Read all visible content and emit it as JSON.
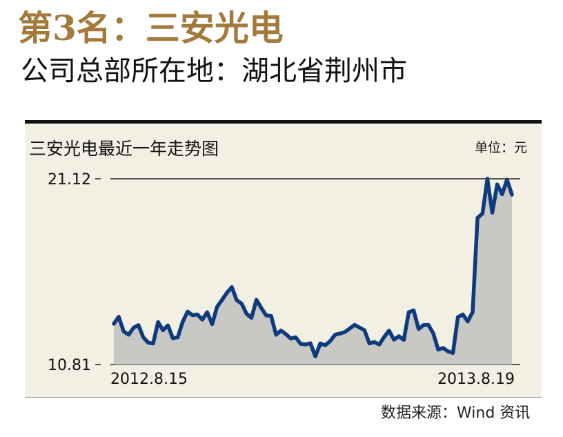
{
  "header": {
    "headline": "第3名：三安光电",
    "subheadline": "公司总部所在地：湖北省荆州市"
  },
  "chart_data": {
    "type": "area",
    "title": "三安光电最近一年走势图",
    "unit": "单位：元",
    "source": "数据来源：Wind 资讯",
    "ylim": [
      10.81,
      21.12
    ],
    "y_ticks": [
      "21.12",
      "10.81"
    ],
    "x_tick_labels": [
      "2012.8.15",
      "2013.8.19"
    ],
    "x_range": [
      "2012-08-15",
      "2013-08-19"
    ],
    "grid": true,
    "colors": {
      "line": "#0e3a7e",
      "area": "#c8c8c4",
      "background": "#f2efe3",
      "headline": "#a37a3c"
    },
    "series": [
      {
        "values": [
          13.07,
          13.46,
          12.65,
          12.46,
          12.85,
          13.0,
          12.32,
          12.02,
          11.98,
          13.17,
          12.71,
          12.98,
          12.27,
          12.32,
          13.17,
          13.75,
          13.55,
          13.59,
          13.3,
          13.71,
          13.05,
          14.01,
          14.39,
          14.79,
          15.11,
          14.38,
          14.19,
          13.63,
          13.4,
          14.4,
          13.95,
          13.53,
          13.51,
          12.46,
          12.69,
          12.5,
          12.25,
          12.32,
          11.96,
          11.92,
          11.99,
          11.26,
          11.98,
          11.88,
          12.1,
          12.46,
          12.53,
          12.61,
          12.81,
          13.01,
          12.86,
          12.71,
          11.98,
          12.06,
          11.92,
          12.34,
          12.69,
          12.19,
          12.38,
          12.18,
          13.71,
          13.82,
          12.78,
          13.0,
          13.01,
          12.54,
          11.64,
          11.73,
          11.54,
          11.45,
          13.44,
          13.59,
          13.2,
          13.71,
          18.95,
          19.19,
          21.12,
          19.24,
          20.81,
          20.26,
          21.07,
          20.24
        ]
      }
    ]
  }
}
